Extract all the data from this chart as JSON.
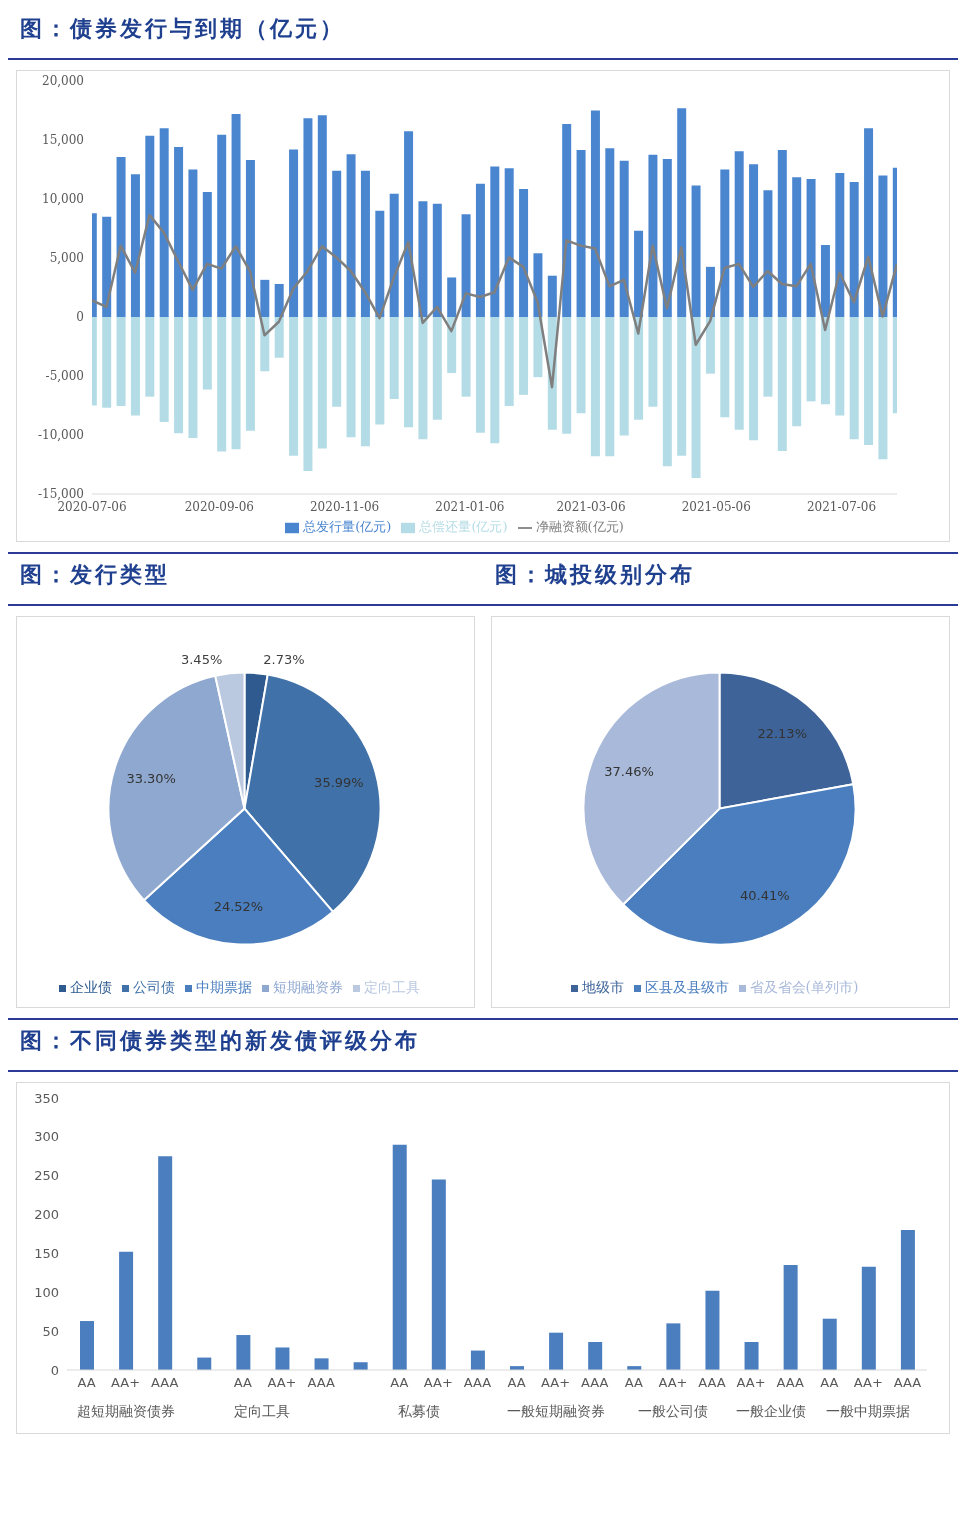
{
  "chart_data": [
    {
      "type": "bar",
      "title": "图：债券发行与到期（亿元）",
      "stacked": true,
      "legend": "bottom",
      "marker": "none",
      "x": [
        "2020-07-06",
        "2020-07-13",
        "2020-07-20",
        "2020-07-27",
        "2020-08-03",
        "2020-08-10",
        "2020-08-17",
        "2020-08-24",
        "2020-08-31",
        "2020-09-07",
        "2020-09-14",
        "2020-09-21",
        "2020-09-28",
        "2020-10-05",
        "2020-10-12",
        "2020-10-19",
        "2020-10-26",
        "2020-11-02",
        "2020-11-09",
        "2020-11-16",
        "2020-11-23",
        "2020-11-30",
        "2020-12-07",
        "2020-12-14",
        "2020-12-21",
        "2020-12-28",
        "2021-01-04",
        "2021-01-11",
        "2021-01-18",
        "2021-01-25",
        "2021-02-01",
        "2021-02-08",
        "2021-02-15",
        "2021-02-22",
        "2021-03-01",
        "2021-03-08",
        "2021-03-15",
        "2021-03-22",
        "2021-03-29",
        "2021-04-05",
        "2021-04-12",
        "2021-04-19",
        "2021-04-26",
        "2021-05-03",
        "2021-05-10",
        "2021-05-17",
        "2021-05-24",
        "2021-05-31",
        "2021-06-07",
        "2021-06-14",
        "2021-06-21",
        "2021-06-28",
        "2021-07-05",
        "2021-07-12",
        "2021-07-19",
        "2021-07-26",
        "2021-08-02"
      ],
      "xlim": [
        "2020-07-06",
        "2021-08-02"
      ],
      "xticks": [
        "2020-07-06",
        "2020-09-06",
        "2020-11-06",
        "2021-01-06",
        "2021-03-06",
        "2021-05-06",
        "2021-07-06"
      ],
      "ylim": [
        -15000,
        20000
      ],
      "yticks": [
        {
          "value": -15000,
          "label": "-15,000"
        },
        {
          "value": -10000,
          "label": "-10,000"
        },
        {
          "value": -5000,
          "label": "-5,000"
        },
        0,
        {
          "value": 5000,
          "label": "5,000"
        },
        {
          "value": 10000,
          "label": "10,000"
        },
        {
          "value": 15000,
          "label": "15,000"
        },
        {
          "value": 20000,
          "label": "20,000"
        }
      ],
      "series": [
        {
          "name": "总发行量(亿元)",
          "type": "bar",
          "color": "#4a86d0",
          "values": [
            8800,
            8500,
            13550,
            12100,
            15350,
            16000,
            14400,
            12500,
            10600,
            15450,
            17200,
            13300,
            3150,
            2800,
            14200,
            16850,
            17100,
            12400,
            13800,
            12400,
            9000,
            10450,
            15750,
            9800,
            9600,
            3350,
            8700,
            11300,
            12750,
            12600,
            10850,
            5400,
            3500,
            16350,
            14150,
            17500,
            14300,
            13250,
            7300,
            13750,
            13400,
            17700,
            11150,
            4250,
            12500,
            14050,
            12950,
            10750,
            14150,
            11850,
            11700,
            6100,
            12200,
            11450,
            16000,
            12000,
            12650
          ]
        },
        {
          "name": "总偿还量(亿元)",
          "type": "bar",
          "color": "#b4dce6",
          "values": [
            -7500,
            -7700,
            -7550,
            -8350,
            -6750,
            -8900,
            -9850,
            -10250,
            -6150,
            -11400,
            -11200,
            -9650,
            -4600,
            -3450,
            -11750,
            -13050,
            -11150,
            -7600,
            -10200,
            -10950,
            -9100,
            -6950,
            -9350,
            -10350,
            -8700,
            -4750,
            -6750,
            -9800,
            -10700,
            -7550,
            -6600,
            -5100,
            -9550,
            -9900,
            -8150,
            -11800,
            -11800,
            -10050,
            -8700,
            -7600,
            -12650,
            -11750,
            -13650,
            -4800,
            -8500,
            -9550,
            -10450,
            -6750,
            -11350,
            -9250,
            -7150,
            -7400,
            -8350,
            -10350,
            -10850,
            -12050,
            -8150
          ]
        },
        {
          "name": "净融资额(亿元)",
          "type": "line",
          "color": "#7f7f7f",
          "values": [
            1400,
            850,
            6050,
            3750,
            8650,
            7150,
            4700,
            2300,
            4500,
            4100,
            6000,
            3850,
            -1550,
            -400,
            2400,
            3900,
            6000,
            5050,
            3900,
            2100,
            -100,
            3350,
            6350,
            -500,
            850,
            -1200,
            2000,
            1700,
            2100,
            5050,
            4250,
            1250,
            -5950,
            6500,
            6050,
            5800,
            2600,
            3150,
            -1400,
            6050,
            750,
            5900,
            -2350,
            -350,
            4150,
            4500,
            2550,
            3900,
            2800,
            2600,
            4500,
            -1100,
            3750,
            1250,
            5100,
            50,
            4500
          ]
        }
      ]
    },
    {
      "type": "pie",
      "title": "图：发行类型",
      "legend": "bottom",
      "categories": [
        "企业债",
        "公司债",
        "中期票据",
        "短期融资券",
        "定向工具"
      ],
      "values": [
        2.73,
        35.99,
        24.52,
        33.3,
        3.45
      ],
      "value_labels": [
        "2.73%",
        "35.99%",
        "24.52%",
        "33.30%",
        "3.45%"
      ],
      "colors": [
        "#2e5a8f",
        "#4071a8",
        "#4a7ebf",
        "#8fa8d0",
        "#bac8e0"
      ]
    },
    {
      "type": "pie",
      "title": "图：城投级别分布",
      "legend": "bottom",
      "categories": [
        "地级市",
        "区县及县级市",
        "省及省会(单列市)"
      ],
      "values": [
        22.13,
        40.41,
        37.46
      ],
      "value_labels": [
        "22.13%",
        "40.41%",
        "37.46%"
      ],
      "colors": [
        "#3d6399",
        "#4a7ebf",
        "#a9b9d9"
      ]
    },
    {
      "type": "bar",
      "title": "图：不同债券类型的新发债评级分布",
      "color": "#4a7ebf",
      "categories": [
        "AA",
        "AA+",
        "AAA",
        null,
        "AA",
        "AA+",
        "AAA",
        null,
        "AA",
        "AA+",
        "AAA",
        "AA",
        "AA+",
        "AAA",
        "AA",
        "AA+",
        "AAA",
        "AA+",
        "AAA",
        "AA",
        "AA+",
        "AAA"
      ],
      "values": [
        63,
        152,
        275,
        16,
        45,
        29,
        15,
        10,
        290,
        245,
        25,
        5,
        48,
        36,
        5,
        60,
        102,
        36,
        135,
        66,
        133,
        180
      ],
      "ylim": [
        0,
        350
      ],
      "yticks": [
        0,
        50,
        100,
        150,
        200,
        250,
        300,
        350
      ],
      "annotations": [
        "超短期融资债券",
        "定向工具",
        "私募债",
        "一般短期融资券",
        "一般公司债",
        "一般企业债",
        "一般中期票据"
      ]
    }
  ]
}
